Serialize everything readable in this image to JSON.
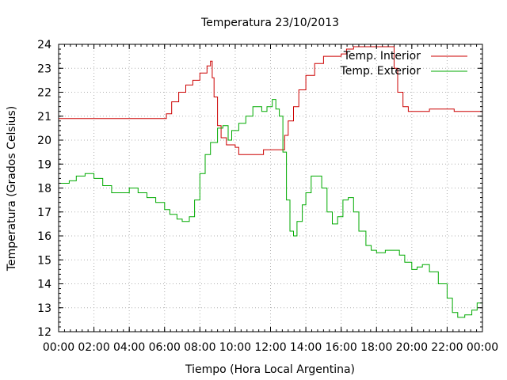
{
  "chart_data": {
    "type": "line",
    "title": "Temperatura 23/10/2013",
    "xlabel": "Tiempo (Hora Local Argentina)",
    "ylabel": "Temperatura (Grados Celsius)",
    "xlim": [
      0,
      24
    ],
    "ylim": [
      12,
      24
    ],
    "x_ticks": [
      "00:00",
      "02:00",
      "04:00",
      "06:00",
      "08:00",
      "10:00",
      "12:00",
      "14:00",
      "16:00",
      "18:00",
      "20:00",
      "22:00",
      "00:00"
    ],
    "y_ticks": [
      12,
      13,
      14,
      15,
      16,
      17,
      18,
      19,
      20,
      21,
      22,
      23,
      24
    ],
    "grid": true,
    "legend_position": "top-right",
    "series": [
      {
        "name": "Temp. Interior",
        "color": "#cc0000",
        "points": [
          [
            0,
            20.9
          ],
          [
            6.0,
            20.9
          ],
          [
            6.1,
            21.1
          ],
          [
            6.4,
            21.6
          ],
          [
            6.8,
            22.0
          ],
          [
            7.2,
            22.3
          ],
          [
            7.6,
            22.5
          ],
          [
            8.0,
            22.8
          ],
          [
            8.4,
            23.1
          ],
          [
            8.6,
            23.3
          ],
          [
            8.7,
            22.6
          ],
          [
            8.8,
            21.8
          ],
          [
            9.0,
            20.6
          ],
          [
            9.2,
            20.1
          ],
          [
            9.5,
            19.8
          ],
          [
            10.0,
            19.7
          ],
          [
            10.2,
            19.4
          ],
          [
            11.5,
            19.4
          ],
          [
            11.6,
            19.6
          ],
          [
            12.6,
            19.6
          ],
          [
            12.8,
            20.2
          ],
          [
            13.0,
            20.8
          ],
          [
            13.3,
            21.4
          ],
          [
            13.6,
            22.1
          ],
          [
            14.0,
            22.7
          ],
          [
            14.5,
            23.2
          ],
          [
            15.0,
            23.5
          ],
          [
            15.5,
            23.5
          ],
          [
            16.0,
            23.6
          ],
          [
            16.3,
            23.8
          ],
          [
            16.7,
            23.9
          ],
          [
            18.8,
            23.9
          ],
          [
            19.0,
            23.0
          ],
          [
            19.2,
            22.0
          ],
          [
            19.5,
            21.4
          ],
          [
            19.8,
            21.2
          ],
          [
            20.8,
            21.2
          ],
          [
            21.0,
            21.3
          ],
          [
            22.3,
            21.3
          ],
          [
            22.4,
            21.2
          ],
          [
            23.8,
            21.2
          ],
          [
            24.0,
            21.0
          ]
        ]
      },
      {
        "name": "Temp. Exterior",
        "color": "#00aa00",
        "points": [
          [
            0,
            18.2
          ],
          [
            0.6,
            18.3
          ],
          [
            1.0,
            18.5
          ],
          [
            1.5,
            18.6
          ],
          [
            2.0,
            18.4
          ],
          [
            2.5,
            18.1
          ],
          [
            3.0,
            17.8
          ],
          [
            3.5,
            17.8
          ],
          [
            4.0,
            18.0
          ],
          [
            4.5,
            17.8
          ],
          [
            5.0,
            17.6
          ],
          [
            5.5,
            17.4
          ],
          [
            6.0,
            17.1
          ],
          [
            6.3,
            16.9
          ],
          [
            6.7,
            16.7
          ],
          [
            7.0,
            16.6
          ],
          [
            7.4,
            16.8
          ],
          [
            7.7,
            17.5
          ],
          [
            8.0,
            18.6
          ],
          [
            8.3,
            19.4
          ],
          [
            8.6,
            19.9
          ],
          [
            9.0,
            20.5
          ],
          [
            9.3,
            20.6
          ],
          [
            9.6,
            20.0
          ],
          [
            9.8,
            20.4
          ],
          [
            10.2,
            20.7
          ],
          [
            10.6,
            21.0
          ],
          [
            11.0,
            21.4
          ],
          [
            11.5,
            21.2
          ],
          [
            11.8,
            21.4
          ],
          [
            12.1,
            21.7
          ],
          [
            12.3,
            21.3
          ],
          [
            12.5,
            21.0
          ],
          [
            12.7,
            19.5
          ],
          [
            12.9,
            17.5
          ],
          [
            13.1,
            16.2
          ],
          [
            13.3,
            16.0
          ],
          [
            13.5,
            16.6
          ],
          [
            13.8,
            17.3
          ],
          [
            14.0,
            17.8
          ],
          [
            14.3,
            18.5
          ],
          [
            14.6,
            18.5
          ],
          [
            14.9,
            18.0
          ],
          [
            15.2,
            17.0
          ],
          [
            15.5,
            16.5
          ],
          [
            15.8,
            16.8
          ],
          [
            16.1,
            17.5
          ],
          [
            16.4,
            17.6
          ],
          [
            16.7,
            17.0
          ],
          [
            17.0,
            16.2
          ],
          [
            17.4,
            15.6
          ],
          [
            17.7,
            15.4
          ],
          [
            18.0,
            15.3
          ],
          [
            18.5,
            15.4
          ],
          [
            19.0,
            15.4
          ],
          [
            19.3,
            15.2
          ],
          [
            19.6,
            14.9
          ],
          [
            20.0,
            14.6
          ],
          [
            20.3,
            14.7
          ],
          [
            20.6,
            14.8
          ],
          [
            21.0,
            14.5
          ],
          [
            21.5,
            14.0
          ],
          [
            22.0,
            13.4
          ],
          [
            22.3,
            12.8
          ],
          [
            22.6,
            12.6
          ],
          [
            23.0,
            12.7
          ],
          [
            23.4,
            12.9
          ],
          [
            23.7,
            13.2
          ],
          [
            24.0,
            13.2
          ]
        ]
      }
    ]
  }
}
